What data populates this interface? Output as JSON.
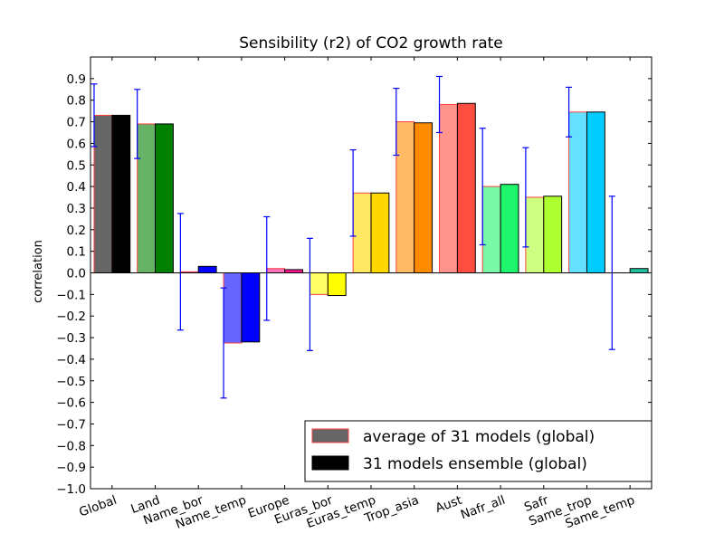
{
  "chart_data": {
    "type": "bar",
    "title": "Sensibility (r2) of CO2 growth rate",
    "xlabel": "",
    "ylabel": "correlation",
    "ylim": [
      -1.0,
      1.0
    ],
    "yticks": [
      -1.0,
      -0.9,
      -0.8,
      -0.7,
      -0.6,
      -0.5,
      -0.4,
      -0.3,
      -0.2,
      -0.1,
      0.0,
      0.1,
      0.2,
      0.3,
      0.4,
      0.5,
      0.6,
      0.7,
      0.8,
      0.9
    ],
    "ytick_labels": [
      "−1.0",
      "−0.9",
      "−0.8",
      "−0.7",
      "−0.6",
      "−0.5",
      "−0.4",
      "−0.3",
      "−0.2",
      "−0.1",
      "0.0",
      "0.1",
      "0.2",
      "0.3",
      "0.4",
      "0.5",
      "0.6",
      "0.7",
      "0.8",
      "0.9"
    ],
    "grid": false,
    "legend_position": "bottom-right",
    "categories": [
      "Global",
      "Land",
      "Name_bor",
      "Name_temp",
      "Europe",
      "Euras_bor",
      "Euras_temp",
      "Trop_asia",
      "Aust",
      "Nafr_all",
      "Safr",
      "Same_trop",
      "Same_temp"
    ],
    "category_colors": [
      "#000000",
      "#008000",
      "#0000ff",
      "#0000ff",
      "#ff1493",
      "#ffff00",
      "#ffd700",
      "#ff8c00",
      "#ff4d40",
      "#1ef56c",
      "#adff2f",
      "#00ccff",
      "#20c0a0"
    ],
    "series": [
      {
        "name": "average of 31 models (global)",
        "values": [
          0.73,
          0.69,
          0.005,
          -0.325,
          0.02,
          -0.1,
          0.37,
          0.7,
          0.78,
          0.4,
          0.35,
          0.745,
          0.0
        ],
        "error": [
          0.145,
          0.16,
          0.27,
          0.255,
          0.24,
          0.26,
          0.2,
          0.155,
          0.13,
          0.27,
          0.23,
          0.115,
          0.355
        ],
        "legend_color": "#666666",
        "legend_edge": "#ff4040"
      },
      {
        "name": "31 models ensemble (global)",
        "values": [
          0.73,
          0.69,
          0.03,
          -0.32,
          0.015,
          -0.105,
          0.37,
          0.695,
          0.785,
          0.41,
          0.355,
          0.745,
          0.02
        ],
        "legend_color": "#000000",
        "legend_edge": "#000000"
      }
    ],
    "error_color": "#0000ff"
  }
}
